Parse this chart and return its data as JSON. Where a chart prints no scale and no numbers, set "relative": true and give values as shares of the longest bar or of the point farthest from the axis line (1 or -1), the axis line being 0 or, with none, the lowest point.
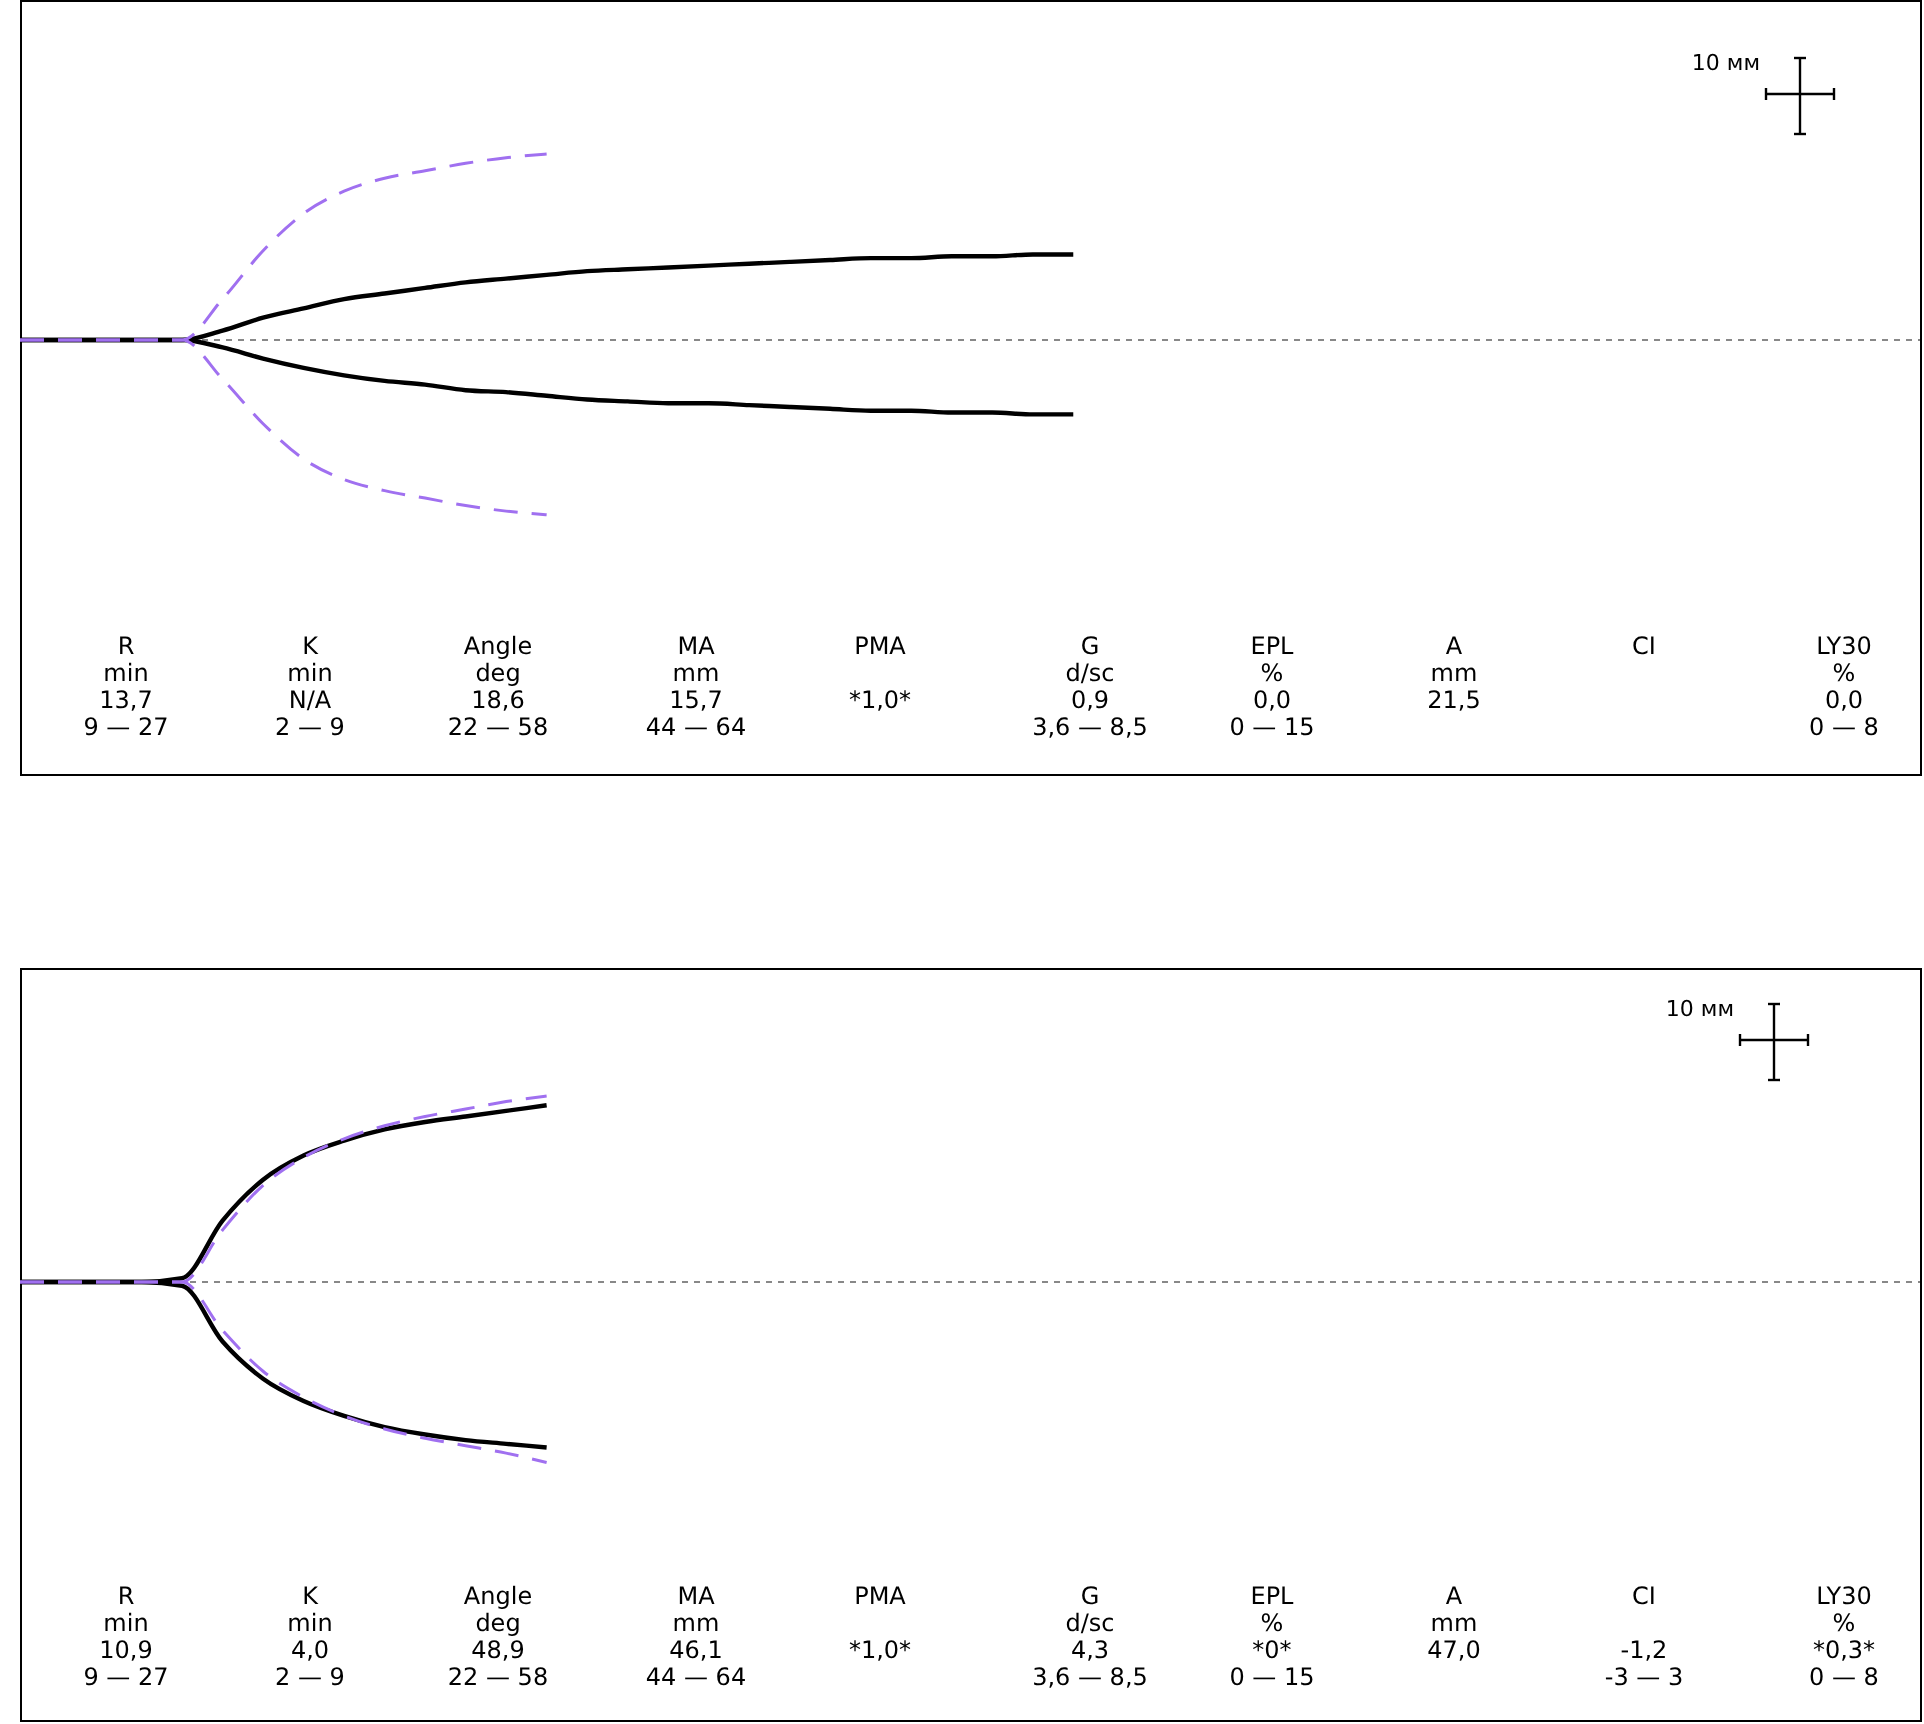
{
  "chart_data": [
    {
      "type": "line",
      "relative": true,
      "ref_lines": [
        {
          "axis": "y",
          "value": 0,
          "color": "#888888",
          "line_style": "dashed"
        }
      ],
      "categories": [
        null,
        null,
        null,
        null,
        null,
        null,
        null,
        null,
        null,
        null,
        null,
        null,
        null,
        null,
        null,
        null,
        null,
        null,
        null,
        null,
        null,
        null,
        null,
        null,
        null,
        null,
        null,
        null,
        null,
        null,
        null,
        null,
        null,
        null,
        null,
        null,
        null,
        null,
        null,
        null,
        null,
        null,
        null,
        null,
        null,
        null,
        null,
        null
      ],
      "series": [
        {
          "color": "#000000",
          "line_style": "solid",
          "values": [
            0,
            0,
            0,
            0,
            0,
            0.05,
            0.12,
            0.17,
            0.22,
            0.25,
            0.28,
            0.31,
            0.33,
            0.35,
            0.37,
            0.38,
            0.39,
            0.4,
            0.41,
            0.42,
            0.43,
            0.44,
            0.44,
            0.45,
            0.45,
            0.46,
            0.46,
            null,
            null,
            null,
            null,
            null,
            null,
            null,
            null,
            null,
            null,
            null,
            null,
            null,
            null,
            null,
            null,
            null,
            null,
            null,
            null,
            null
          ]
        },
        {
          "color": "#000000",
          "line_style": "solid",
          "values": [
            0,
            0,
            0,
            0,
            0,
            -0.04,
            -0.1,
            -0.15,
            -0.19,
            -0.22,
            -0.24,
            -0.27,
            -0.28,
            -0.3,
            -0.32,
            -0.33,
            -0.34,
            -0.34,
            -0.35,
            -0.36,
            -0.37,
            -0.38,
            -0.38,
            -0.39,
            -0.39,
            -0.4,
            -0.4,
            null,
            null,
            null,
            null,
            null,
            null,
            null,
            null,
            null,
            null,
            null,
            null,
            null,
            null,
            null,
            null,
            null,
            null,
            null,
            null,
            null
          ]
        },
        {
          "color": "#a070f0",
          "line_style": "dashed",
          "values": [
            0,
            0,
            0,
            0,
            0,
            0.22,
            0.48,
            0.68,
            0.8,
            0.87,
            0.91,
            0.95,
            0.98,
            1,
            null,
            null,
            null,
            null,
            null,
            null,
            null,
            null,
            null,
            null,
            null,
            null,
            null,
            null,
            null,
            null,
            null,
            null,
            null,
            null,
            null,
            null,
            null,
            null,
            null,
            null,
            null,
            null,
            null,
            null,
            null,
            null,
            null,
            null
          ]
        },
        {
          "color": "#a070f0",
          "line_style": "dashed",
          "values": [
            0,
            0,
            0,
            0,
            0,
            -0.21,
            -0.45,
            -0.64,
            -0.75,
            -0.81,
            -0.85,
            -0.89,
            -0.92,
            -0.94,
            null,
            null,
            null,
            null,
            null,
            null,
            null,
            null,
            null,
            null,
            null,
            null,
            null,
            null,
            null,
            null,
            null,
            null,
            null,
            null,
            null,
            null,
            null,
            null,
            null,
            null,
            null,
            null,
            null,
            null,
            null,
            null,
            null,
            null
          ]
        }
      ],
      "annotations": [
        "10 мм",
        "R\nmin\n13,7\n9 — 27",
        "K\nmin\nN/A\n2 — 9",
        "Angle\ndeg\n18,6\n22 — 58",
        "MA\nmm\n15,7\n44 — 64",
        "PMA\n\n*1,0*\n",
        "G\nd/sc\n0,9\n3,6 — 8,5",
        "EPL\n%\n0,0\n0 — 15",
        "A\nmm\n21,5\n",
        "CI\n\n\n",
        "LY30\n%\n0,0\n0 — 8"
      ]
    },
    {
      "type": "line",
      "relative": true,
      "ref_lines": [
        {
          "axis": "y",
          "value": 0,
          "color": "#888888",
          "line_style": "dashed"
        }
      ],
      "categories": [
        null,
        null,
        null,
        null,
        null,
        null,
        null,
        null,
        null,
        null,
        null,
        null,
        null,
        null,
        null,
        null,
        null,
        null,
        null,
        null,
        null,
        null,
        null,
        null,
        null,
        null,
        null,
        null,
        null,
        null,
        null,
        null,
        null,
        null,
        null,
        null,
        null,
        null,
        null,
        null,
        null,
        null,
        null,
        null,
        null,
        null,
        null,
        null
      ],
      "series": [
        {
          "color": "#000000",
          "line_style": "solid",
          "values": [
            0,
            0,
            0,
            0,
            0.02,
            0.33,
            0.55,
            0.68,
            0.76,
            0.82,
            0.86,
            0.89,
            0.92,
            0.95,
            null,
            null,
            null,
            null,
            null,
            null,
            null,
            null,
            null,
            null,
            null,
            null,
            null,
            null,
            null,
            null,
            null,
            null,
            null,
            null,
            null,
            null,
            null,
            null,
            null,
            null,
            null,
            null,
            null,
            null,
            null,
            null,
            null,
            null
          ]
        },
        {
          "color": "#000000",
          "line_style": "solid",
          "values": [
            0,
            0,
            0,
            0,
            -0.02,
            -0.32,
            -0.52,
            -0.64,
            -0.72,
            -0.78,
            -0.82,
            -0.85,
            -0.87,
            -0.89,
            null,
            null,
            null,
            null,
            null,
            null,
            null,
            null,
            null,
            null,
            null,
            null,
            null,
            null,
            null,
            null,
            null,
            null,
            null,
            null,
            null,
            null,
            null,
            null,
            null,
            null,
            null,
            null,
            null,
            null,
            null,
            null,
            null,
            null
          ]
        },
        {
          "color": "#a070f0",
          "line_style": "dashed",
          "values": [
            0,
            0,
            0,
            0,
            0,
            0.28,
            0.52,
            0.67,
            0.77,
            0.84,
            0.89,
            0.93,
            0.97,
            1,
            null,
            null,
            null,
            null,
            null,
            null,
            null,
            null,
            null,
            null,
            null,
            null,
            null,
            null,
            null,
            null,
            null,
            null,
            null,
            null,
            null,
            null,
            null,
            null,
            null,
            null,
            null,
            null,
            null,
            null,
            null,
            null,
            null,
            null
          ]
        },
        {
          "color": "#a070f0",
          "line_style": "dashed",
          "values": [
            0,
            0,
            0,
            0,
            0,
            -0.26,
            -0.48,
            -0.62,
            -0.72,
            -0.79,
            -0.84,
            -0.88,
            -0.92,
            -0.97,
            null,
            null,
            null,
            null,
            null,
            null,
            null,
            null,
            null,
            null,
            null,
            null,
            null,
            null,
            null,
            null,
            null,
            null,
            null,
            null,
            null,
            null,
            null,
            null,
            null,
            null,
            null,
            null,
            null,
            null,
            null,
            null,
            null,
            null
          ]
        }
      ],
      "annotations": [
        "10 мм",
        "R\nmin\n10,9\n9 — 27",
        "K\nmin\n4,0\n2 — 9",
        "Angle\ndeg\n48,9\n22 — 58",
        "MA\nmm\n46,1\n44 — 64",
        "PMA\n\n*1,0*\n",
        "G\nd/sc\n4,3\n3,6 — 8,5",
        "EPL\n%\n*0*\n0 — 15",
        "A\nmm\n47,0\n",
        "CI\n\n-1,2\n-3 — 3",
        "LY30\n%\n*0,3*\n0 — 8"
      ]
    }
  ]
}
